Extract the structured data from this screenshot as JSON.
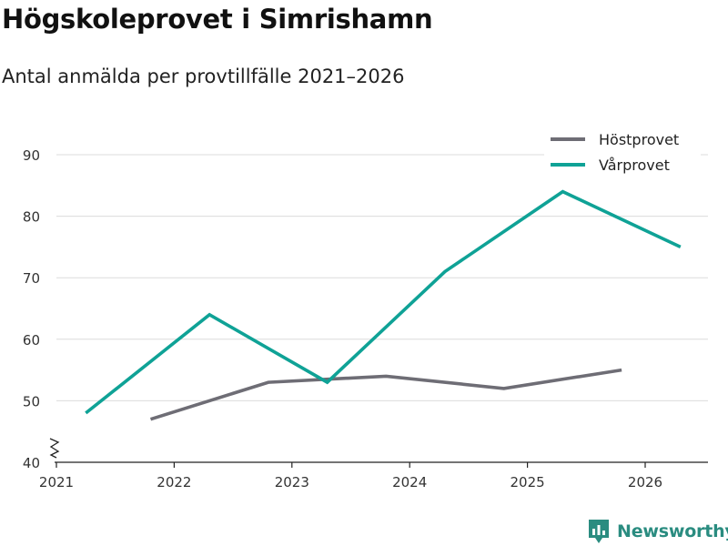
{
  "title": "Högskoleprovet i Simrishamn",
  "subtitle": "Antal anmälda per provtillfälle 2021–2026",
  "brand": {
    "name": "Newsworthy",
    "color": "#2a8c80"
  },
  "chart_data": {
    "type": "line",
    "title": "Högskoleprovet i Simrishamn",
    "subtitle": "Antal anmälda per provtillfälle 2021–2026",
    "xlabel": "",
    "ylabel": "",
    "xlim": [
      2021,
      2026.5
    ],
    "ylim": [
      40,
      90
    ],
    "x_ticks": [
      2021,
      2022,
      2023,
      2024,
      2025,
      2026
    ],
    "y_ticks": [
      40,
      50,
      60,
      70,
      80,
      90
    ],
    "y_axis_break": true,
    "grid": "horizontal",
    "legend_position": "top-right",
    "series": [
      {
        "name": "Höstprovet",
        "color": "#6e6d75",
        "points": [
          {
            "x": 2021.8,
            "y": 47
          },
          {
            "x": 2022.8,
            "y": 53
          },
          {
            "x": 2023.8,
            "y": 54
          },
          {
            "x": 2024.8,
            "y": 52
          },
          {
            "x": 2025.8,
            "y": 55
          }
        ]
      },
      {
        "name": "Vårprovet",
        "color": "#0fa296",
        "points": [
          {
            "x": 2021.25,
            "y": 48
          },
          {
            "x": 2022.3,
            "y": 64
          },
          {
            "x": 2023.3,
            "y": 53
          },
          {
            "x": 2024.3,
            "y": 71
          },
          {
            "x": 2025.3,
            "y": 84
          },
          {
            "x": 2026.3,
            "y": 75
          }
        ]
      }
    ]
  }
}
